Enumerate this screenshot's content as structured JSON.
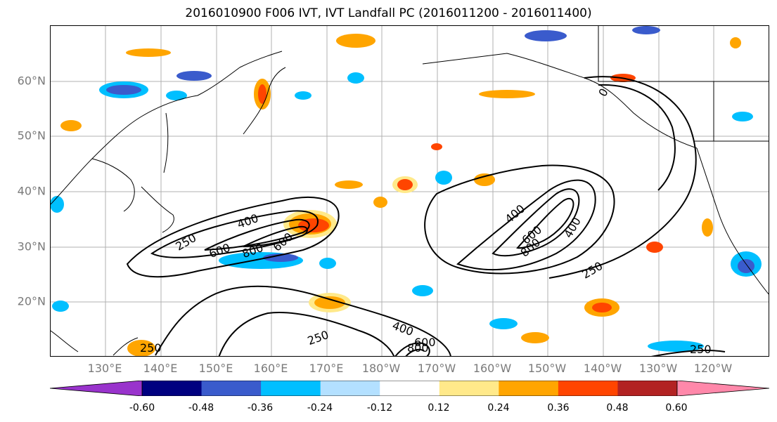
{
  "title": "2016010900 F006 IVT, IVT Landfall PC (2016011200 - 2016011400)",
  "axes": {
    "lat_labels": [
      "60°N",
      "50°N",
      "40°N",
      "30°N",
      "20°N"
    ],
    "lon_labels": [
      "130°E",
      "140°E",
      "150°E",
      "160°E",
      "170°E",
      "180°W",
      "170°W",
      "160°W",
      "150°W",
      "140°W",
      "130°W",
      "120°W"
    ],
    "grid": true
  },
  "contours": {
    "color": "#000000",
    "levels": [
      "250",
      "400",
      "600",
      "800"
    ],
    "labels": [
      "250",
      "400",
      "600",
      "800",
      "600",
      "250",
      "400",
      "600",
      "800",
      "400",
      "250",
      "250",
      "400",
      "600",
      "800",
      "0",
      "250"
    ]
  },
  "colorbar": {
    "colors": [
      "#9933cc",
      "#000080",
      "#3a5bcc",
      "#00bfff",
      "#b3e0ff",
      "#ffffff",
      "#ffe98a",
      "#ffa500",
      "#ff4500",
      "#b22222",
      "#ff88aa"
    ],
    "tick_labels": [
      "-0.60",
      "-0.48",
      "-0.36",
      "-0.24",
      "-0.12",
      "0.12",
      "0.24",
      "0.36",
      "0.48",
      "0.60"
    ]
  }
}
